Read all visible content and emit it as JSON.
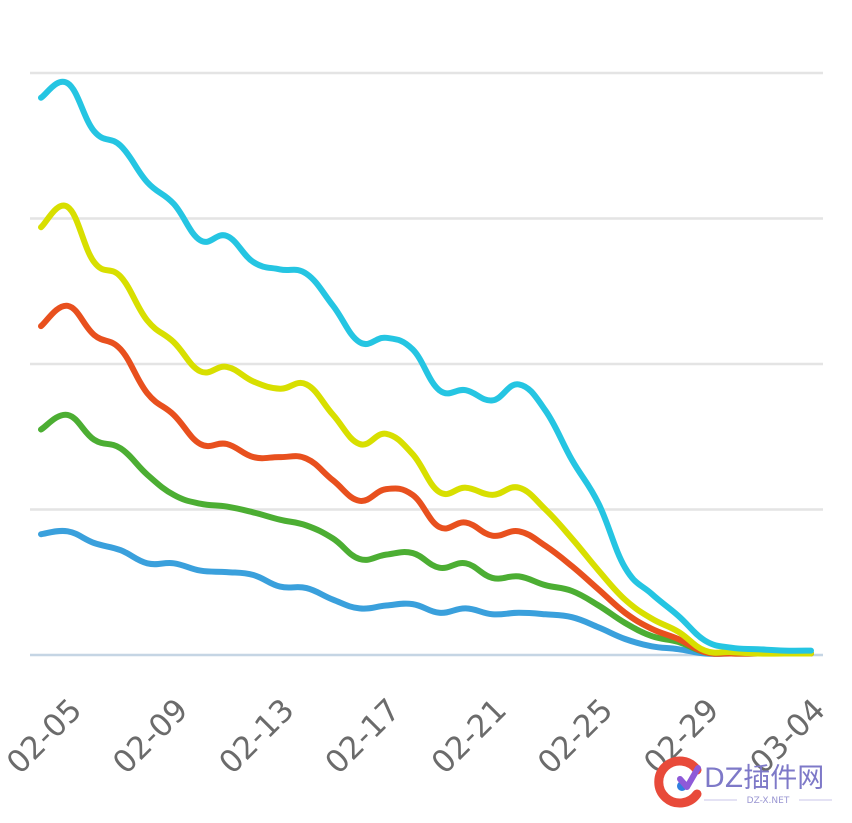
{
  "chart_data": {
    "type": "line",
    "title": "",
    "xlabel": "",
    "ylabel": "",
    "ylim": [
      0,
      4
    ],
    "grid": true,
    "legend": "none",
    "x_ticks": [
      "02-05",
      "02-09",
      "02-13",
      "02-17",
      "02-21",
      "02-25",
      "02-29",
      "03-04"
    ],
    "x": [
      "02-04",
      "02-05",
      "02-06",
      "02-07",
      "02-08",
      "02-09",
      "02-10",
      "02-11",
      "02-12",
      "02-13",
      "02-14",
      "02-15",
      "02-16",
      "02-17",
      "02-18",
      "02-19",
      "02-20",
      "02-21",
      "02-22",
      "02-23",
      "02-24",
      "02-25",
      "02-26",
      "02-27",
      "02-28",
      "02-29",
      "03-01",
      "03-02",
      "03-03",
      "03-04"
    ],
    "series": [
      {
        "color": "#3aa0dc",
        "values": [
          0.83,
          0.85,
          0.77,
          0.72,
          0.63,
          0.63,
          0.58,
          0.57,
          0.55,
          0.47,
          0.46,
          0.38,
          0.32,
          0.34,
          0.35,
          0.29,
          0.32,
          0.28,
          0.29,
          0.28,
          0.26,
          0.19,
          0.11,
          0.06,
          0.04,
          0.01,
          0.01,
          0.01,
          0.01,
          0.01
        ]
      },
      {
        "color": "#4cae33",
        "values": [
          1.55,
          1.65,
          1.48,
          1.42,
          1.24,
          1.1,
          1.04,
          1.02,
          0.98,
          0.93,
          0.89,
          0.8,
          0.66,
          0.69,
          0.7,
          0.6,
          0.63,
          0.53,
          0.54,
          0.48,
          0.44,
          0.34,
          0.22,
          0.13,
          0.09,
          0.02,
          0.01,
          0.01,
          0.01,
          0.01
        ]
      },
      {
        "color": "#e8501e",
        "values": [
          2.26,
          2.4,
          2.2,
          2.1,
          1.8,
          1.65,
          1.45,
          1.45,
          1.36,
          1.36,
          1.35,
          1.2,
          1.06,
          1.14,
          1.1,
          0.88,
          0.91,
          0.82,
          0.85,
          0.75,
          0.61,
          0.45,
          0.29,
          0.18,
          0.11,
          0.02,
          0.01,
          0.01,
          0.01,
          0.01
        ]
      },
      {
        "color": "#d8df00",
        "values": [
          2.94,
          3.08,
          2.7,
          2.6,
          2.3,
          2.15,
          1.95,
          1.98,
          1.88,
          1.83,
          1.86,
          1.65,
          1.45,
          1.52,
          1.38,
          1.12,
          1.15,
          1.1,
          1.15,
          1.0,
          0.8,
          0.58,
          0.38,
          0.25,
          0.16,
          0.03,
          0.02,
          0.01,
          0.01,
          0.01
        ]
      },
      {
        "color": "#25c5e2",
        "values": [
          3.83,
          3.93,
          3.6,
          3.5,
          3.25,
          3.1,
          2.85,
          2.88,
          2.7,
          2.65,
          2.62,
          2.4,
          2.15,
          2.18,
          2.1,
          1.82,
          1.82,
          1.75,
          1.86,
          1.68,
          1.34,
          1.04,
          0.6,
          0.42,
          0.27,
          0.1,
          0.05,
          0.04,
          0.03,
          0.03
        ]
      }
    ]
  },
  "watermark": {
    "brand_text": "DZ插件网",
    "url_text": "DZ-X.NET"
  }
}
